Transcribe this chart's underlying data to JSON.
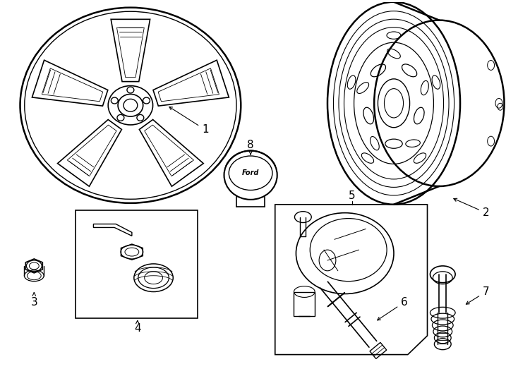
{
  "background_color": "#ffffff",
  "line_color": "#000000",
  "lw": 1.0,
  "fig_width": 7.34,
  "fig_height": 5.4
}
